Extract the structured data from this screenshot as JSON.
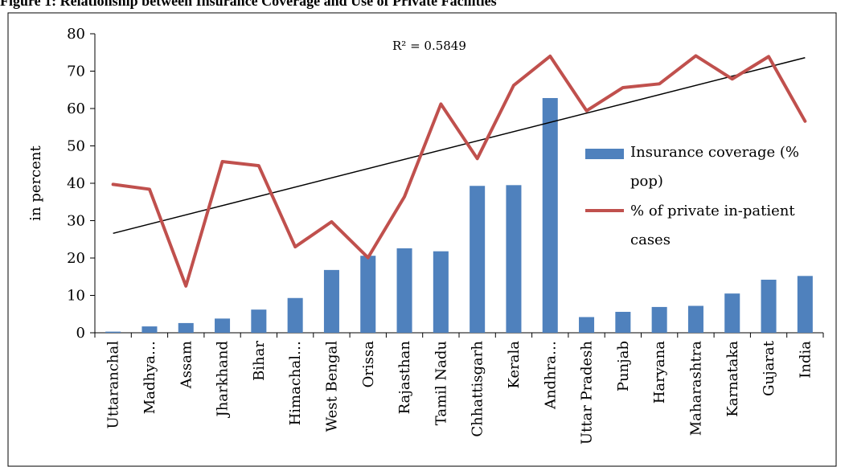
{
  "figure_title": "Figure 1: Relationship between Insurance Coverage and Use of Private Facilities",
  "chart_data": {
    "type": "bar",
    "title": "",
    "xlabel": "",
    "ylabel": "in percent",
    "ylim": [
      0,
      80
    ],
    "yticks": [
      0,
      10,
      20,
      30,
      40,
      50,
      60,
      70,
      80
    ],
    "grid": false,
    "legend_position": "right",
    "categories": [
      "Uttaranchal",
      "Madhya…",
      "Assam",
      "Jharkhand",
      "Bihar",
      "Himachal…",
      "West Bengal",
      "Orissa",
      "Rajasthan",
      "Tamil Nadu",
      "Chhattisgarh",
      "Kerala",
      "Andhra…",
      "Uttar Pradesh",
      "Punjab",
      "Haryana",
      "Maharashtra",
      "Karnataka",
      "Gujarat",
      "India"
    ],
    "series": [
      {
        "name": "Insurance coverage (% pop)",
        "type": "bar",
        "color": "#4f81bd",
        "values": [
          0.3,
          1.7,
          2.6,
          3.8,
          6.2,
          9.3,
          16.8,
          20.6,
          22.6,
          21.8,
          39.3,
          39.5,
          62.8,
          4.2,
          5.6,
          6.9,
          7.2,
          10.5,
          14.2,
          15.2
        ]
      },
      {
        "name": "% of private in-patient cases",
        "type": "line",
        "color": "#c0504d",
        "values": [
          39.7,
          38.4,
          12.5,
          45.8,
          44.7,
          23.0,
          29.7,
          20.1,
          36.4,
          61.2,
          46.6,
          66.2,
          74.0,
          59.4,
          65.6,
          66.6,
          74.1,
          67.9,
          73.9,
          56.6
        ]
      }
    ],
    "trendline": {
      "type": "linear",
      "color": "#000000",
      "start_value": 26.6,
      "end_value": 73.6,
      "label": "R² = 0.5849"
    },
    "legend": [
      {
        "lines": [
          "Insurance coverage (%",
          "pop)"
        ]
      },
      {
        "lines": [
          "% of private in-patient",
          "cases"
        ]
      }
    ]
  }
}
